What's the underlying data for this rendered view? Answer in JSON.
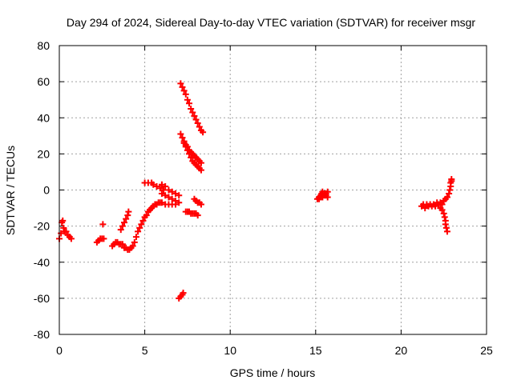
{
  "chart_data": {
    "type": "scatter",
    "title": "Day 294 of 2024, Sidereal Day-to-day VTEC variation (SDTVAR) for receiver msgr",
    "xlabel": "GPS time / hours",
    "ylabel": "SDTVAR / TECUs",
    "xlim": [
      0,
      25
    ],
    "ylim": [
      -80,
      80
    ],
    "xticks": [
      "0",
      "5",
      "10",
      "15",
      "20",
      "25"
    ],
    "yticks": [
      "-80",
      "-60",
      "-40",
      "-20",
      "0",
      "20",
      "40",
      "60",
      "80"
    ],
    "grid": true,
    "marker": "plus",
    "color": "#ff0000",
    "series": [
      {
        "points": [
          [
            0.0,
            -27
          ],
          [
            0.1,
            -24
          ],
          [
            0.15,
            -18
          ],
          [
            0.2,
            -17
          ],
          [
            0.25,
            -21
          ],
          [
            0.3,
            -23
          ],
          [
            0.4,
            -23
          ],
          [
            0.5,
            -25
          ],
          [
            0.6,
            -26
          ],
          [
            0.7,
            -27
          ],
          [
            2.2,
            -29
          ],
          [
            2.3,
            -28
          ],
          [
            2.4,
            -27
          ],
          [
            2.5,
            -27
          ],
          [
            2.6,
            -27
          ],
          [
            2.55,
            -19
          ],
          [
            3.1,
            -31
          ],
          [
            3.2,
            -30
          ],
          [
            3.3,
            -29
          ],
          [
            3.4,
            -29
          ],
          [
            3.5,
            -30
          ],
          [
            3.6,
            -30
          ],
          [
            3.7,
            -30
          ],
          [
            3.6,
            -22
          ],
          [
            3.7,
            -20
          ],
          [
            3.8,
            -18
          ],
          [
            3.9,
            -16
          ],
          [
            4.0,
            -14
          ],
          [
            4.05,
            -12
          ],
          [
            3.8,
            -32
          ],
          [
            3.9,
            -32
          ],
          [
            4.0,
            -33
          ],
          [
            4.1,
            -33
          ],
          [
            4.2,
            -32
          ],
          [
            4.3,
            -31
          ],
          [
            4.4,
            -29
          ],
          [
            4.5,
            -26
          ],
          [
            4.6,
            -23
          ],
          [
            4.7,
            -21
          ],
          [
            4.8,
            -19
          ],
          [
            4.9,
            -17
          ],
          [
            5.0,
            -15
          ],
          [
            5.1,
            -14
          ],
          [
            5.2,
            -12
          ],
          [
            5.3,
            -11
          ],
          [
            5.4,
            -10
          ],
          [
            5.5,
            -9
          ],
          [
            5.6,
            -8
          ],
          [
            5.7,
            -8
          ],
          [
            5.8,
            -7
          ],
          [
            5.9,
            -7
          ],
          [
            6.0,
            -7
          ],
          [
            6.2,
            -8
          ],
          [
            6.4,
            -8
          ],
          [
            6.6,
            -8
          ],
          [
            6.8,
            -8
          ],
          [
            5.0,
            4
          ],
          [
            5.2,
            4
          ],
          [
            5.4,
            4
          ],
          [
            5.5,
            3
          ],
          [
            5.7,
            2
          ],
          [
            5.9,
            1
          ],
          [
            6.1,
            0
          ],
          [
            6.0,
            3
          ],
          [
            6.2,
            2
          ],
          [
            6.4,
            0
          ],
          [
            6.6,
            -1
          ],
          [
            6.8,
            -2
          ],
          [
            7.0,
            -3
          ],
          [
            6.0,
            -2
          ],
          [
            6.2,
            -3
          ],
          [
            6.4,
            -4
          ],
          [
            6.6,
            -5
          ],
          [
            6.8,
            -6
          ],
          [
            7.0,
            -7
          ],
          [
            7.1,
            59
          ],
          [
            7.2,
            57
          ],
          [
            7.3,
            55
          ],
          [
            7.4,
            53
          ],
          [
            7.5,
            50
          ],
          [
            7.6,
            48
          ],
          [
            7.7,
            45
          ],
          [
            7.8,
            43
          ],
          [
            7.9,
            41
          ],
          [
            8.0,
            39
          ],
          [
            8.1,
            37
          ],
          [
            8.2,
            35
          ],
          [
            8.3,
            33
          ],
          [
            8.4,
            32
          ],
          [
            7.1,
            31
          ],
          [
            7.2,
            29
          ],
          [
            7.3,
            27
          ],
          [
            7.4,
            25
          ],
          [
            7.5,
            24
          ],
          [
            7.6,
            22
          ],
          [
            7.7,
            21
          ],
          [
            7.8,
            20
          ],
          [
            7.9,
            19
          ],
          [
            8.0,
            18
          ],
          [
            8.1,
            17
          ],
          [
            8.2,
            16
          ],
          [
            8.3,
            15
          ],
          [
            7.3,
            26
          ],
          [
            7.4,
            24
          ],
          [
            7.5,
            22
          ],
          [
            7.6,
            20
          ],
          [
            7.7,
            18
          ],
          [
            7.8,
            16
          ],
          [
            7.9,
            15
          ],
          [
            8.0,
            14
          ],
          [
            8.1,
            13
          ],
          [
            8.2,
            12
          ],
          [
            8.3,
            11
          ],
          [
            7.0,
            -60
          ],
          [
            7.1,
            -59
          ],
          [
            7.2,
            -58
          ],
          [
            7.25,
            -57
          ],
          [
            7.4,
            -12
          ],
          [
            7.5,
            -12
          ],
          [
            7.6,
            -12
          ],
          [
            7.7,
            -13
          ],
          [
            7.8,
            -13
          ],
          [
            7.9,
            -13
          ],
          [
            8.0,
            -13
          ],
          [
            8.1,
            -14
          ],
          [
            7.9,
            -5
          ],
          [
            8.0,
            -6
          ],
          [
            8.1,
            -7
          ],
          [
            8.2,
            -7
          ],
          [
            8.3,
            -8
          ],
          [
            15.1,
            -5
          ],
          [
            15.2,
            -4
          ],
          [
            15.3,
            -3
          ],
          [
            15.35,
            -2
          ],
          [
            15.4,
            -1
          ],
          [
            15.5,
            -2
          ],
          [
            15.6,
            -3
          ],
          [
            15.7,
            -4
          ],
          [
            15.2,
            -5
          ],
          [
            15.3,
            -4
          ],
          [
            15.4,
            -4
          ],
          [
            15.5,
            -3
          ],
          [
            15.6,
            -2
          ],
          [
            15.7,
            -1
          ],
          [
            21.2,
            -9
          ],
          [
            21.3,
            -8
          ],
          [
            21.5,
            -8
          ],
          [
            21.7,
            -8
          ],
          [
            21.9,
            -8
          ],
          [
            22.1,
            -7
          ],
          [
            22.3,
            -7
          ],
          [
            22.5,
            -6
          ],
          [
            21.4,
            -10
          ],
          [
            21.6,
            -9
          ],
          [
            21.8,
            -9
          ],
          [
            22.0,
            -9
          ],
          [
            22.2,
            -8
          ],
          [
            22.4,
            -8
          ],
          [
            22.3,
            -10
          ],
          [
            22.4,
            -11
          ],
          [
            22.5,
            -13
          ],
          [
            22.55,
            -15
          ],
          [
            22.6,
            -17
          ],
          [
            22.6,
            -19
          ],
          [
            22.65,
            -21
          ],
          [
            22.7,
            -23
          ],
          [
            22.6,
            -5
          ],
          [
            22.7,
            -4
          ],
          [
            22.8,
            -2
          ],
          [
            22.85,
            0
          ],
          [
            22.9,
            2
          ],
          [
            22.9,
            4
          ],
          [
            22.95,
            5
          ],
          [
            22.95,
            6
          ]
        ]
      }
    ]
  }
}
